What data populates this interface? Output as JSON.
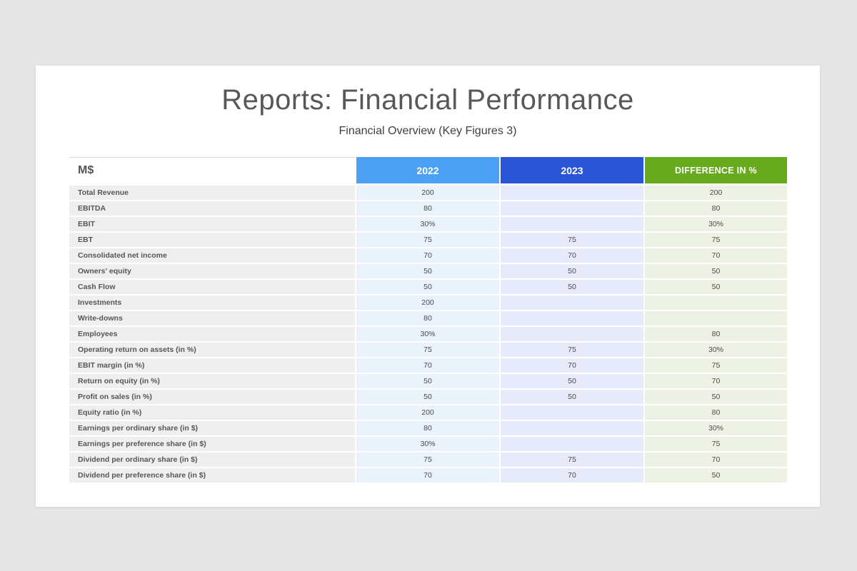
{
  "page": {
    "title": "Reports: Financial Performance",
    "subtitle": "Financial Overview (Key Figures 3)"
  },
  "colors": {
    "col-2022": "#4ba0f4",
    "col-2023": "#2b55d7",
    "col-diff": "#67aa1d",
    "cell-2022-bg": "#eaf2fc",
    "cell-2023-bg": "#e7eafa",
    "cell-diff-bg": "#eef2e4",
    "label-bg": "#f0efef"
  },
  "table": {
    "unit_header": "M$",
    "columns": [
      "2022",
      "2023",
      "DIFFERENCE IN %"
    ],
    "rows": [
      {
        "label": "Total Revenue",
        "y2022": "200",
        "y2023": "",
        "diff": "200"
      },
      {
        "label": "EBITDA",
        "y2022": "80",
        "y2023": "",
        "diff": "80"
      },
      {
        "label": "EBIT",
        "y2022": "30%",
        "y2023": "",
        "diff": "30%"
      },
      {
        "label": "EBT",
        "y2022": "75",
        "y2023": "75",
        "diff": "75"
      },
      {
        "label": "Consolidated net income",
        "y2022": "70",
        "y2023": "70",
        "diff": "70"
      },
      {
        "label": "Owners' equity",
        "y2022": "50",
        "y2023": "50",
        "diff": "50"
      },
      {
        "label": "Cash Flow",
        "y2022": "50",
        "y2023": "50",
        "diff": "50"
      },
      {
        "label": "Investments",
        "y2022": "200",
        "y2023": "",
        "diff": ""
      },
      {
        "label": "Write-downs",
        "y2022": "80",
        "y2023": "",
        "diff": ""
      },
      {
        "label": "Employees",
        "y2022": "30%",
        "y2023": "",
        "diff": "80"
      },
      {
        "label": "Operating return on assets (in %)",
        "y2022": "75",
        "y2023": "75",
        "diff": "30%"
      },
      {
        "label": "EBIT margin (in %)",
        "y2022": "70",
        "y2023": "70",
        "diff": "75"
      },
      {
        "label": "Return on equity (in %)",
        "y2022": "50",
        "y2023": "50",
        "diff": "70"
      },
      {
        "label": "Profit on sales (in %)",
        "y2022": "50",
        "y2023": "50",
        "diff": "50"
      },
      {
        "label": "Equity ratio (in %)",
        "y2022": "200",
        "y2023": "",
        "diff": "80"
      },
      {
        "label": "Earnings per ordinary share (in $)",
        "y2022": "80",
        "y2023": "",
        "diff": "30%"
      },
      {
        "label": "Earnings per preference share (in $)",
        "y2022": "30%",
        "y2023": "",
        "diff": "75"
      },
      {
        "label": "Dividend per ordinary share (in $)",
        "y2022": "75",
        "y2023": "75",
        "diff": "70"
      },
      {
        "label": "Dividend per preference share (in $)",
        "y2022": "70",
        "y2023": "70",
        "diff": "50"
      }
    ]
  }
}
